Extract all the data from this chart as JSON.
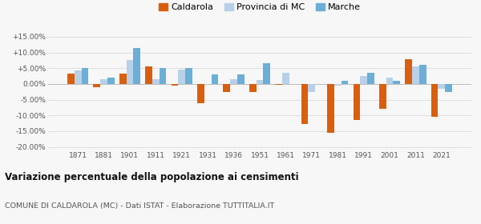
{
  "years": [
    1871,
    1881,
    1901,
    1911,
    1921,
    1931,
    1936,
    1951,
    1961,
    1971,
    1981,
    1991,
    2001,
    2011,
    2021
  ],
  "caldarola": [
    3.2,
    -1.0,
    3.2,
    5.5,
    -0.5,
    -6.2,
    -2.5,
    -2.5,
    -0.2,
    -12.8,
    -15.5,
    -11.5,
    -7.8,
    7.8,
    -10.5
  ],
  "provincia_mc": [
    4.2,
    1.5,
    7.5,
    1.5,
    4.5,
    0.0,
    1.5,
    1.2,
    3.5,
    -2.5,
    -0.5,
    2.5,
    2.0,
    5.5,
    -1.5
  ],
  "marche": [
    5.0,
    2.0,
    11.5,
    5.0,
    5.0,
    3.0,
    3.0,
    6.5,
    0.0,
    0.0,
    1.0,
    3.5,
    1.0,
    6.0,
    -2.5
  ],
  "color_caldarola": "#d95f0e",
  "color_provincia": "#b8d0e8",
  "color_marche": "#6baed6",
  "bg_color": "#f7f7f7",
  "grid_color": "#d8d8d8",
  "title": "Variazione percentuale della popolazione ai censimenti",
  "subtitle": "COMUNE DI CALDAROLA (MC) - Dati ISTAT - Elaborazione TUTTITALIA.IT",
  "yticks": [
    -20,
    -15,
    -10,
    -5,
    0,
    5,
    10,
    15
  ],
  "ylim": [
    -21,
    16
  ],
  "bar_width": 0.27
}
